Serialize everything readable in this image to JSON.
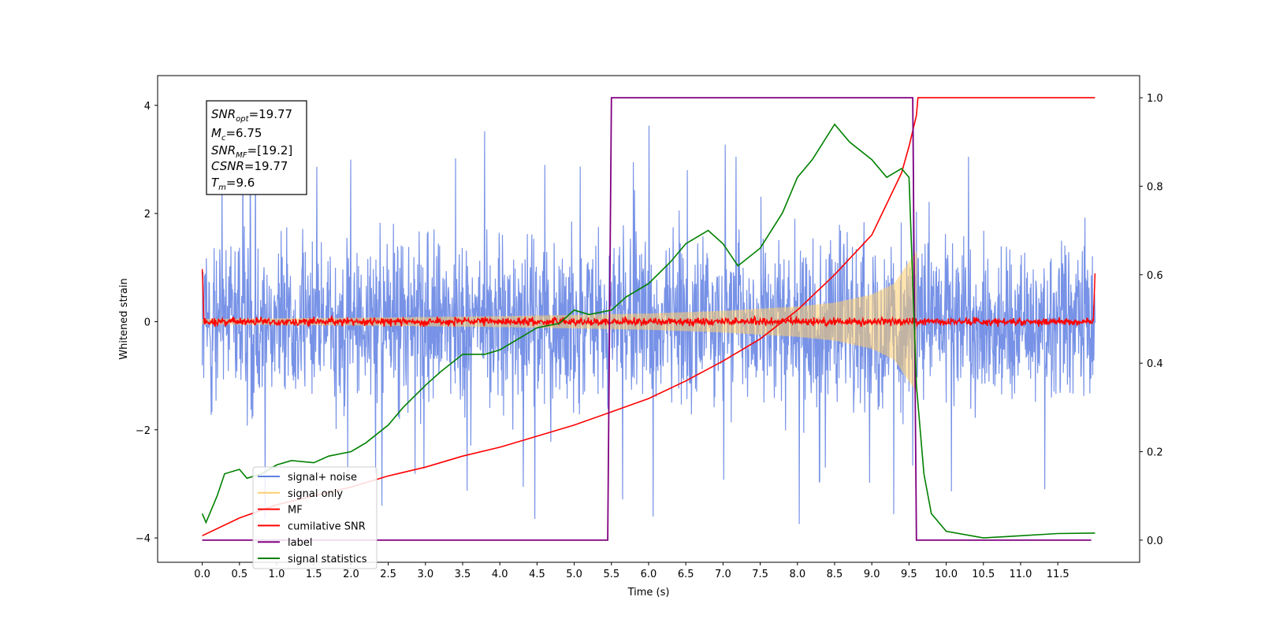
{
  "chart_data": {
    "type": "line",
    "xlabel": "Time (s)",
    "ylabel": "Whitened strain",
    "xlim": [
      -0.6,
      12.6
    ],
    "ylim": [
      -4.45,
      4.55
    ],
    "y2lim": [
      -0.05,
      1.05
    ],
    "x_ticks": [
      "0.0",
      "0.5",
      "1.0",
      "1.5",
      "2.0",
      "2.5",
      "3.0",
      "3.5",
      "4.0",
      "4.5",
      "5.0",
      "5.5",
      "6.0",
      "6.5",
      "7.0",
      "7.5",
      "8.0",
      "8.5",
      "9.0",
      "9.5",
      "10.0",
      "10.5",
      "11.0",
      "11.5"
    ],
    "y_ticks": [
      "4",
      "2",
      "0",
      "−2",
      "−4"
    ],
    "y2_ticks": [
      "1.0",
      "0.8",
      "0.6",
      "0.4",
      "0.2",
      "0.0"
    ],
    "annotation": {
      "snr_opt": {
        "sym": "SNR",
        "sub": "opt",
        "val": "=19.77"
      },
      "mc": {
        "sym": "M",
        "sub": "c",
        "val": "=6.75"
      },
      "snr_mf": {
        "sym": "SNR",
        "sub": "MF",
        "val": "=[19.2]"
      },
      "csnr": {
        "sym": "CSNR",
        "sub": "",
        "val": "=19.77"
      },
      "tm": {
        "sym": "T",
        "sub": "m",
        "val": "=9.6"
      }
    },
    "legend": {
      "placement": "lower-left",
      "entries": [
        {
          "label": "signal+ noise",
          "color": "#5f7fe2"
        },
        {
          "label": "signal only",
          "color": "#ffcd6e"
        },
        {
          "label": "MF",
          "color": "#ff0000"
        },
        {
          "label": "cumilative SNR",
          "color": "#ff0000"
        },
        {
          "label": "label",
          "color": "#800080"
        },
        {
          "label": "signal statistics",
          "color": "#008000"
        }
      ]
    },
    "series": [
      {
        "name": "signal+ noise",
        "axis": "left",
        "color": "#5f7fe2",
        "x_range": [
          0,
          12
        ],
        "typical_amplitude": 1.0,
        "peak_range": [
          -4.0,
          4.1
        ]
      },
      {
        "name": "signal only",
        "axis": "left",
        "color": "#ffcd6e",
        "x_range": [
          0,
          9.6
        ],
        "envelope": {
          "x": [
            0,
            2,
            4,
            6,
            7,
            8,
            8.5,
            9,
            9.3,
            9.5,
            9.6
          ],
          "amp": [
            0.05,
            0.07,
            0.1,
            0.15,
            0.2,
            0.28,
            0.35,
            0.5,
            0.7,
            1.1,
            1.3
          ]
        }
      },
      {
        "name": "MF",
        "axis": "left",
        "color": "#ff0000",
        "x_range": [
          0,
          12
        ],
        "noise_amplitude": 0.07,
        "edge_values": [
          1.0,
          0.97
        ]
      },
      {
        "name": "cumilative SNR",
        "axis": "right",
        "color": "#ff0000",
        "x": [
          0.0,
          0.5,
          1.0,
          1.5,
          2.0,
          2.5,
          3.0,
          3.5,
          4.0,
          4.5,
          5.0,
          5.5,
          6.0,
          6.5,
          7.0,
          7.5,
          8.0,
          8.5,
          9.0,
          9.2,
          9.4,
          9.5,
          9.6,
          9.62,
          12.0
        ],
        "y": [
          0.01,
          0.05,
          0.08,
          0.1,
          0.12,
          0.145,
          0.165,
          0.19,
          0.21,
          0.235,
          0.26,
          0.29,
          0.32,
          0.36,
          0.405,
          0.455,
          0.52,
          0.6,
          0.69,
          0.76,
          0.83,
          0.89,
          0.96,
          1.0,
          1.0
        ]
      },
      {
        "name": "label",
        "axis": "right",
        "color": "#800080",
        "x": [
          0.0,
          5.45,
          5.5,
          9.55,
          9.6,
          11.95
        ],
        "y": [
          0,
          0,
          1,
          1,
          0,
          0
        ]
      },
      {
        "name": "signal statistics",
        "axis": "right",
        "color": "#008000",
        "x": [
          0.0,
          0.05,
          0.1,
          0.2,
          0.3,
          0.5,
          0.6,
          0.8,
          1.0,
          1.2,
          1.5,
          1.7,
          2.0,
          2.2,
          2.5,
          2.7,
          3.0,
          3.2,
          3.5,
          3.8,
          4.0,
          4.2,
          4.5,
          4.8,
          5.0,
          5.2,
          5.5,
          5.7,
          6.0,
          6.3,
          6.5,
          6.8,
          7.0,
          7.2,
          7.5,
          7.8,
          8.0,
          8.2,
          8.5,
          8.7,
          9.0,
          9.2,
          9.4,
          9.5,
          9.6,
          9.7,
          9.8,
          10.0,
          10.5,
          11.0,
          11.5,
          12.0
        ],
        "y": [
          0.06,
          0.04,
          0.06,
          0.1,
          0.15,
          0.16,
          0.14,
          0.15,
          0.17,
          0.18,
          0.175,
          0.19,
          0.2,
          0.22,
          0.26,
          0.3,
          0.35,
          0.38,
          0.42,
          0.42,
          0.43,
          0.45,
          0.48,
          0.49,
          0.52,
          0.51,
          0.52,
          0.55,
          0.58,
          0.63,
          0.67,
          0.7,
          0.67,
          0.62,
          0.66,
          0.74,
          0.82,
          0.86,
          0.94,
          0.9,
          0.86,
          0.82,
          0.84,
          0.82,
          0.35,
          0.15,
          0.06,
          0.02,
          0.005,
          0.01,
          0.015,
          0.016
        ]
      }
    ]
  }
}
